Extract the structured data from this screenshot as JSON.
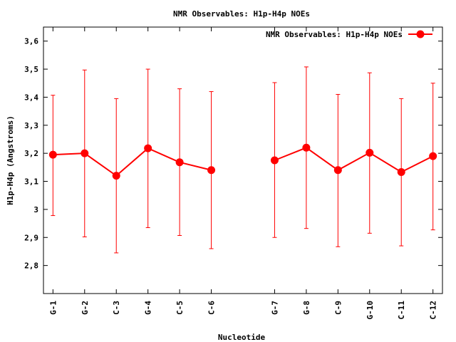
{
  "chart_data": {
    "type": "line",
    "title": "NMR Observables: H1p-H4p NOEs",
    "xlabel": "Nucleotide",
    "ylabel": "H1p-H4p (Angstroms)",
    "ylim": [
      2.7,
      3.65
    ],
    "yticks": [
      "2,8",
      "2,9",
      "3",
      "3,1",
      "3,2",
      "3,3",
      "3,4",
      "3,5",
      "3,6"
    ],
    "ytick_values": [
      2.8,
      2.9,
      3.0,
      3.1,
      3.2,
      3.3,
      3.4,
      3.5,
      3.6
    ],
    "xlim": [
      0.7,
      13.3
    ],
    "categories": [
      "G-1",
      "G-2",
      "C-3",
      "G-4",
      "C-5",
      "C-6",
      "G-7",
      "G-8",
      "C-9",
      "G-10",
      "C-11",
      "C-12"
    ],
    "x": [
      1,
      2,
      3,
      4,
      5,
      6,
      8,
      9,
      10,
      11,
      12,
      13
    ],
    "legend_position": "top-right",
    "color": "#ff0000",
    "series": [
      {
        "name": "NMR Observables: H1p-H4p NOEs",
        "segments": [
          [
            0,
            1,
            2,
            3,
            4,
            5
          ],
          [
            6,
            7,
            8,
            9,
            10,
            11
          ]
        ],
        "values": [
          3.195,
          3.2,
          3.12,
          3.218,
          3.168,
          3.14,
          3.175,
          3.22,
          3.14,
          3.202,
          3.133,
          3.19
        ],
        "err_low": [
          2.978,
          2.902,
          2.845,
          2.935,
          2.907,
          2.86,
          2.9,
          2.932,
          2.867,
          2.915,
          2.87,
          2.927
        ],
        "err_high": [
          3.407,
          3.497,
          3.395,
          3.5,
          3.43,
          3.42,
          3.452,
          3.508,
          3.41,
          3.487,
          3.395,
          3.45
        ]
      }
    ]
  }
}
